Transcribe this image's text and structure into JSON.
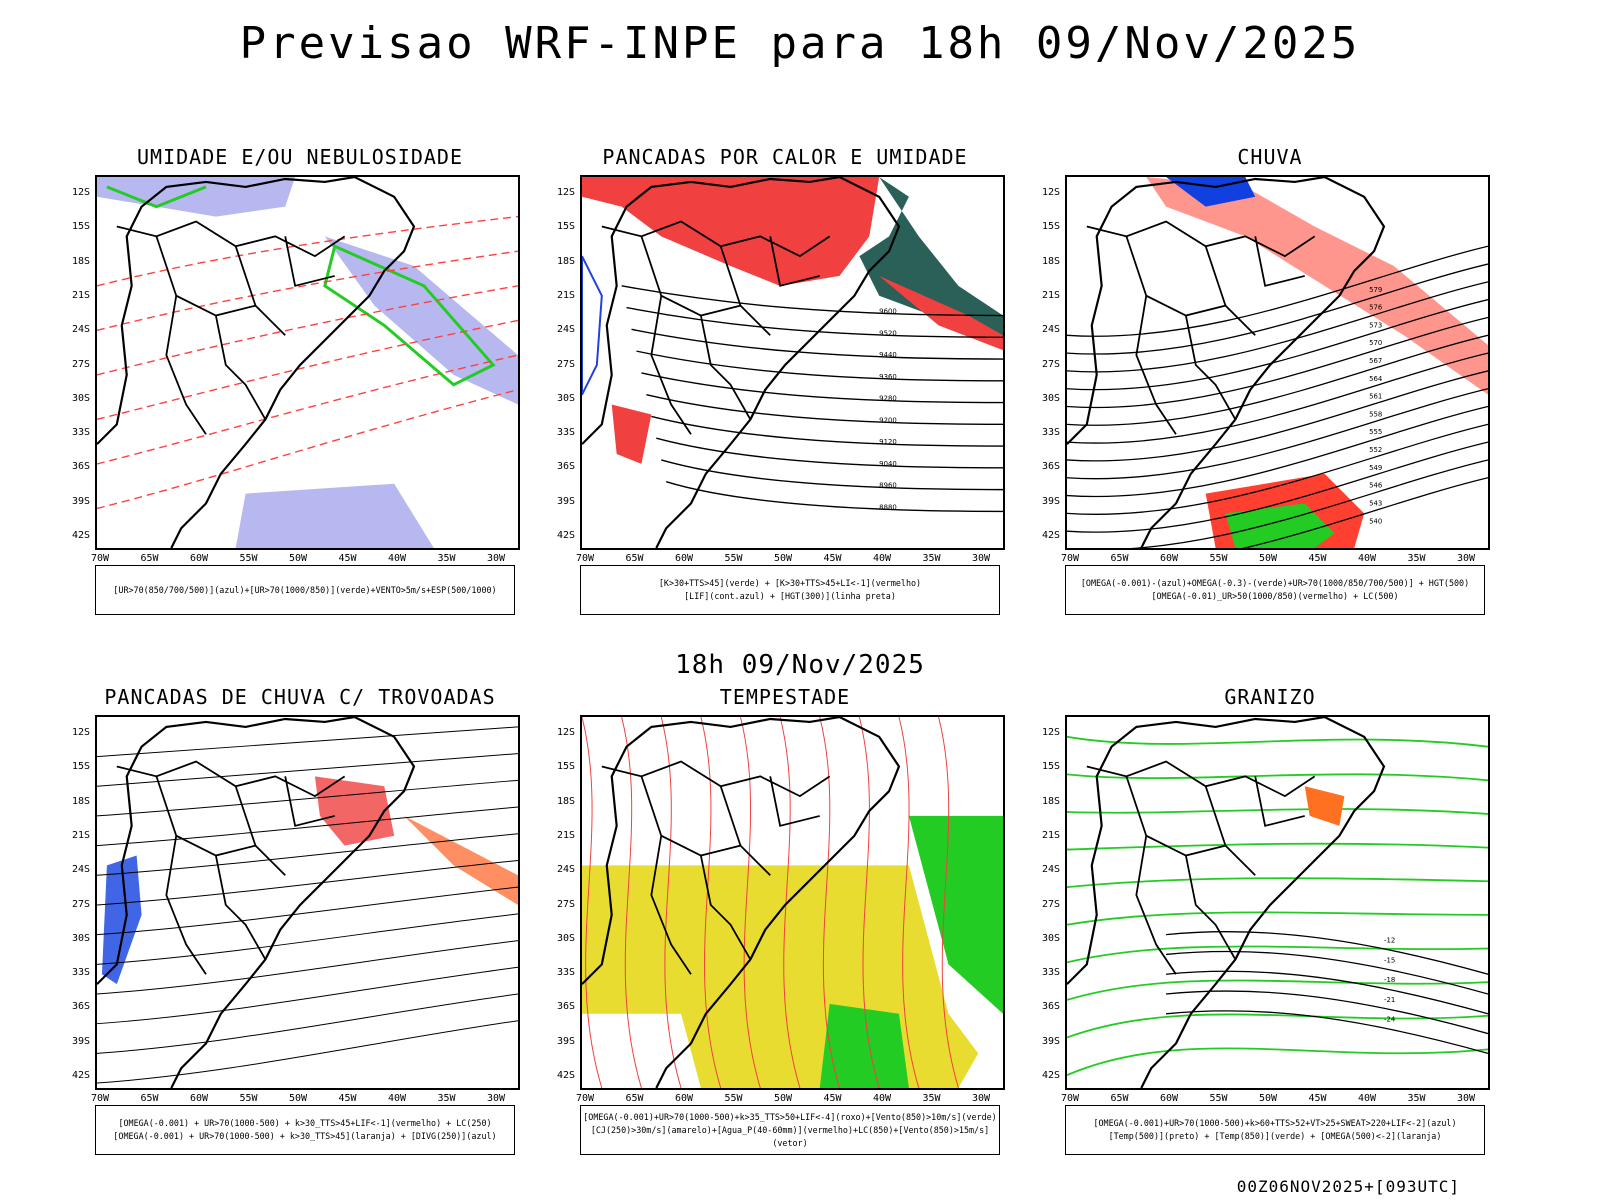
{
  "title": "Previsao WRF-INPE  para 18h 09/Nov/2025",
  "subtitle_time": "18h 09/Nov/2025",
  "footer": "00Z06NOV2025+[093UTC]",
  "lat_labels": [
    "12S",
    "15S",
    "18S",
    "21S",
    "24S",
    "27S",
    "30S",
    "33S",
    "36S",
    "39S",
    "42S"
  ],
  "lon_labels": [
    "70W",
    "65W",
    "60W",
    "55W",
    "50W",
    "45W",
    "40W",
    "35W",
    "30W"
  ],
  "panels": [
    {
      "id": "umidade",
      "title": "UMIDADE E/OU NEBULOSIDADE",
      "legend": [
        "[UR>70(850/700/500)](azul)+[UR>70(1000/850)](verde)+VENTO>5m/s+ESP(500/1000)"
      ],
      "fill_colors": [
        "#b8b8f0",
        "#22cc22",
        "#ff4040"
      ]
    },
    {
      "id": "pancadas-calor",
      "title": "PANCADAS POR CALOR E UMIDADE",
      "legend": [
        "[K>30+TTS>45](verde) + [K>30+TTS>45+LI<-1](vermelho)",
        "[LIF](cont.azul) + [HGT(300)](linha preta)"
      ],
      "fill_colors": [
        "#f04040",
        "#2a6058",
        "#2040e0"
      ],
      "contour_labels": [
        "9600",
        "9520",
        "9440",
        "9360",
        "9280",
        "9200",
        "9120",
        "9040",
        "8960",
        "8880"
      ]
    },
    {
      "id": "chuva",
      "title": "CHUVA",
      "legend": [
        "[OMEGA(-0.001)-(azul)+OMEGA(-0.3)-(verde)+UR>70(1000/850/700/500)] + HGT(500)",
        "[OMEGA(-0.01)_UR>50(1000/850)(vermelho) + LC(500)"
      ],
      "fill_colors": [
        "#ff4030",
        "#1040e0",
        "#22cc22"
      ],
      "contour_labels": [
        "579",
        "576",
        "573",
        "570",
        "567",
        "564",
        "561",
        "558",
        "555",
        "552",
        "549",
        "546",
        "543",
        "540"
      ]
    },
    {
      "id": "trovoadas",
      "title": "PANCADAS DE CHUVA C/ TROVOADAS",
      "legend": [
        "[OMEGA(-0.001) + UR>70(1000-500) + k>30_TTS>45+LIF<-1](vermelho) + LC(250)",
        "[OMEGA(-0.001) + UR>70(1000-500) + k>30_TTS>45](laranja) + [DIVG(250)](azul)"
      ],
      "fill_colors": [
        "#f04040",
        "#ff6020",
        "#1040e0"
      ]
    },
    {
      "id": "tempestade",
      "title": "TEMPESTADE",
      "legend": [
        "[OMEGA(-0.001)+UR>70(1000-500)+k>35_TTS>50+LIF<-4](roxo)+[Vento(850)>10m/s](verde)",
        "[CJ(250)>30m/s](amarelo)+[Agua_P(40-60mm)](vermelho)+LC(850)+[Vento(850)>15m/s](vetor)"
      ],
      "fill_colors": [
        "#e8dc30",
        "#22cc22",
        "#f04040"
      ]
    },
    {
      "id": "granizo",
      "title": "GRANIZO",
      "legend": [
        "[OMEGA(-0.001)+UR>70(1000-500)+k>60+TTS>52+VT>25+SWEAT>220+LIF<-2](azul)",
        "[Temp(500)](preto) + [Temp(850)](verde) + [OMEGA(500)<-2](laranja)"
      ],
      "fill_colors": [
        "#22cc22",
        "#ff7020"
      ],
      "contour_labels": [
        "-12",
        "-15",
        "-18",
        "-21",
        "-24"
      ]
    }
  ]
}
